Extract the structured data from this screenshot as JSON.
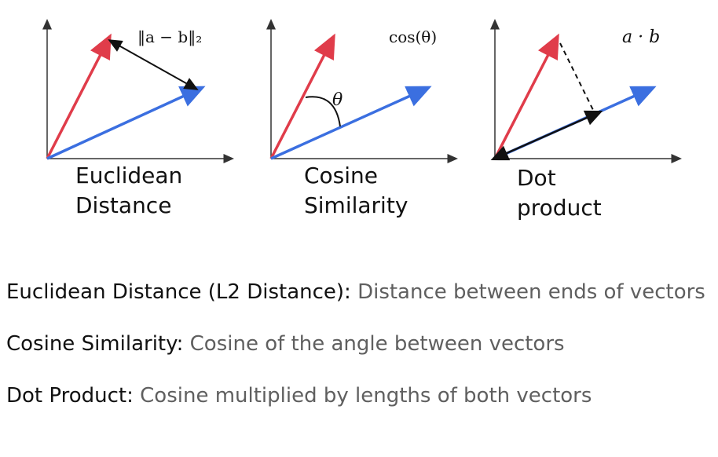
{
  "panels": [
    {
      "caption_line1": "Euclidean",
      "caption_line2": "Distance",
      "formula": "‖a − b‖₂"
    },
    {
      "caption_line1": "Cosine",
      "caption_line2": "Similarity",
      "formula": "cos(θ)",
      "angle_label": "θ"
    },
    {
      "caption_line1": "Dot",
      "caption_line2": "product",
      "formula": "a · b"
    }
  ],
  "colors": {
    "vector_a": "#e03c4a",
    "vector_b": "#3b6fe0",
    "axis": "#333333",
    "annotation": "#111111"
  },
  "definitions": [
    {
      "term": "Euclidean Distance (L2 Distance):",
      "description": " Distance between ends of vectors"
    },
    {
      "term": "Cosine Similarity:",
      "description": " Cosine of the angle between vectors"
    },
    {
      "term": "Dot Product:",
      "description": " Cosine multiplied by lengths of both vectors"
    }
  ]
}
